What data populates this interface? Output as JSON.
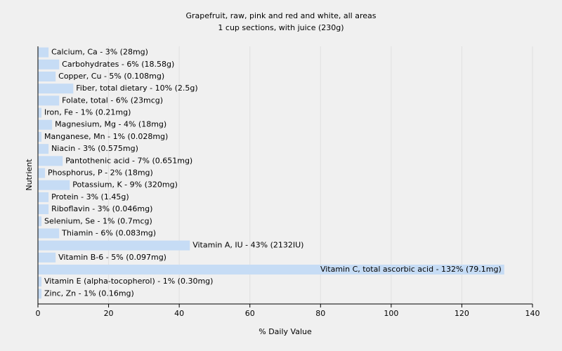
{
  "chart_data": {
    "type": "bar",
    "orientation": "horizontal",
    "title": "Grapefruit, raw, pink and red and white, all areas",
    "subtitle": "1 cup sections, with juice (230g)",
    "x_label": "% Daily Value",
    "y_label": "Nutrient",
    "values": [
      3,
      6,
      5,
      10,
      6,
      1,
      4,
      1,
      3,
      7,
      2,
      9,
      3,
      3,
      1,
      6,
      43,
      5,
      132,
      1,
      1
    ],
    "value_labels": [
      "Calcium, Ca - 3% (28mg)",
      "Carbohydrates - 6% (18.58g)",
      "Copper, Cu - 5% (0.108mg)",
      "Fiber, total dietary - 10% (2.5g)",
      "Folate, total - 6% (23mcg)",
      "Iron, Fe - 1% (0.21mg)",
      "Magnesium, Mg - 4% (18mg)",
      "Manganese, Mn - 1% (0.028mg)",
      "Niacin - 3% (0.575mg)",
      "Pantothenic acid - 7% (0.651mg)",
      "Phosphorus, P - 2% (18mg)",
      "Potassium, K - 9% (320mg)",
      "Protein - 3% (1.45g)",
      "Riboflavin - 3% (0.046mg)",
      "Selenium, Se - 1% (0.7mcg)",
      "Thiamin - 6% (0.083mg)",
      "Vitamin A, IU - 43% (2132IU)",
      "Vitamin B-6 - 5% (0.097mg)",
      "Vitamin C, total ascorbic acid - 132% (79.1mg)",
      "Vitamin E (alpha-tocopherol) - 1% (0.30mg)",
      "Zinc, Zn - 1% (0.16mg)"
    ],
    "color": "#c6dcf5",
    "xlim": [
      0,
      140
    ],
    "xticks": [
      0,
      20,
      40,
      60,
      80,
      100,
      120,
      140
    ],
    "grid": true
  }
}
